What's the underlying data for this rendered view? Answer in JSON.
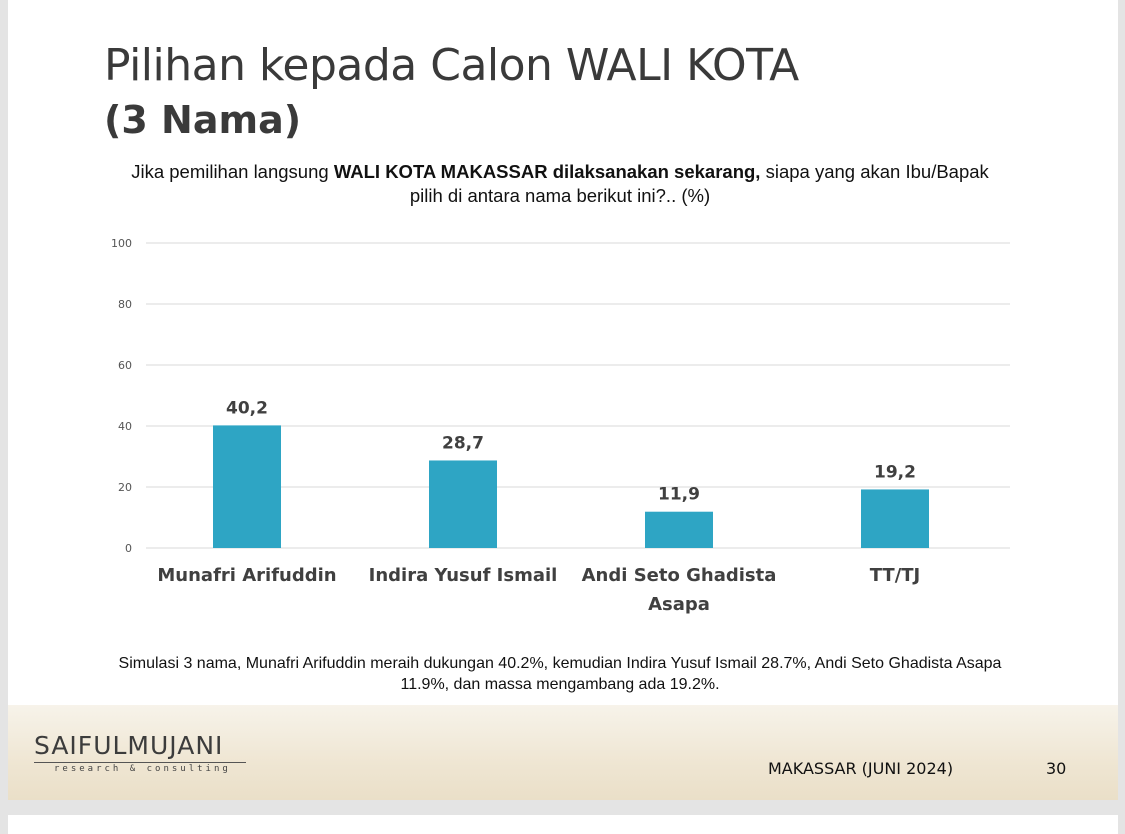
{
  "slide": {
    "title": "Pilihan kepada Calon WALI KOTA",
    "subtitle": "(3 Nama)",
    "question": {
      "part1": "Jika pemilihan langsung ",
      "bold": "WALI KOTA MAKASSAR dilaksanakan sekarang,",
      "part2": " siapa yang akan Ibu/Bapak",
      "line2": "pilih di antara nama berikut ini?.. (%)"
    },
    "summary": {
      "line1": "Simulasi 3 nama, Munafri Arifuddin meraih dukungan 40.2%, kemudian Indira Yusuf Ismail 28.7%, Andi Seto Ghadista Asapa",
      "line2": "11.9%, dan massa mengambang ada 19.2%."
    },
    "footer": {
      "logo": "SAIFULMUJANI",
      "logo_sub": "research & consulting",
      "place": "MAKASSAR (JUNI 2024)",
      "page": "30"
    }
  },
  "chart_data": {
    "type": "bar",
    "categories": [
      [
        "Munafri Arifuddin"
      ],
      [
        "Indira Yusuf Ismail"
      ],
      [
        "Andi Seto Ghadista",
        "Asapa"
      ],
      [
        "TT/TJ"
      ]
    ],
    "values": [
      40.2,
      28.7,
      11.9,
      19.2
    ],
    "value_labels": [
      "40,2",
      "28,7",
      "11,9",
      "19,2"
    ],
    "yticks": [
      0,
      20,
      40,
      60,
      80,
      100
    ],
    "ylim": [
      0,
      100
    ],
    "grid": true,
    "bar_color": "#2ea5c4"
  }
}
